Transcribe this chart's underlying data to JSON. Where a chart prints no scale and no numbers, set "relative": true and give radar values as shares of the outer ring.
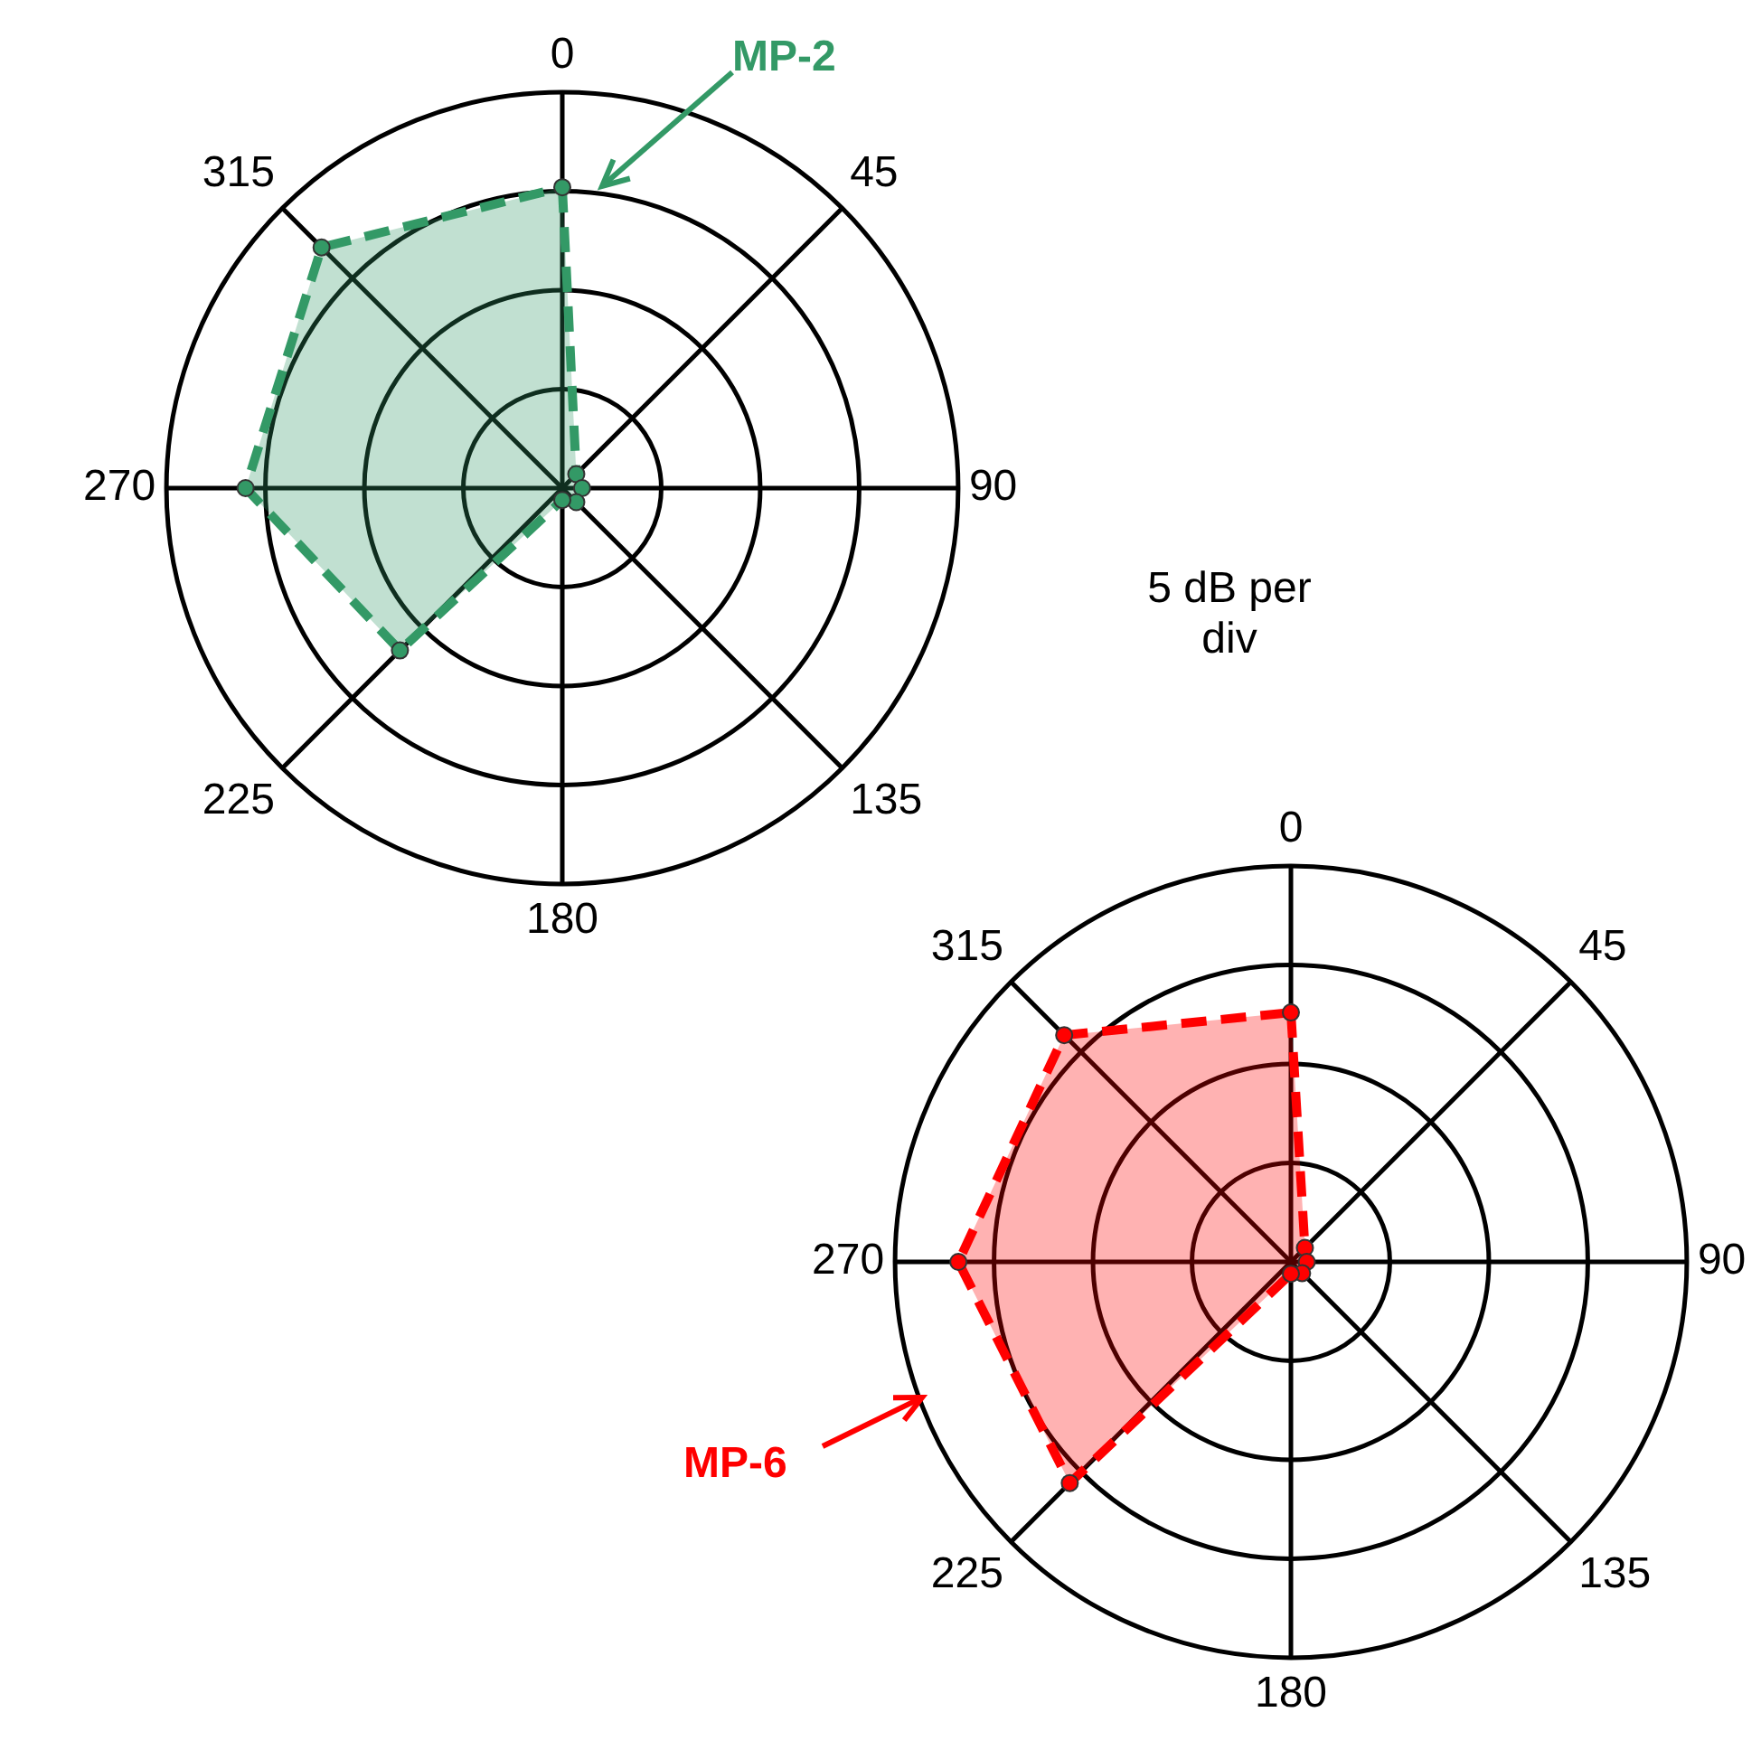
{
  "chart_data": [
    {
      "type": "radar",
      "relative": true,
      "categories": [
        "0",
        "45",
        "90",
        "135",
        "180",
        "225",
        "270",
        "315"
      ],
      "series": [
        {
          "name": "MP-2",
          "color": "#339966",
          "values": [
            0.76,
            0.05,
            0.05,
            0.05,
            0.03,
            0.58,
            0.8,
            0.86
          ]
        }
      ],
      "line_style": "dashed",
      "marker": "circle",
      "grid": true,
      "legend": false,
      "annotations": [
        "5 dB per div"
      ]
    },
    {
      "type": "radar",
      "relative": true,
      "categories": [
        "0",
        "45",
        "90",
        "135",
        "180",
        "225",
        "270",
        "315"
      ],
      "series": [
        {
          "name": "MP-6",
          "color": "#ff0000",
          "values": [
            0.63,
            0.05,
            0.04,
            0.04,
            0.03,
            0.79,
            0.84,
            0.81
          ]
        }
      ],
      "line_style": "dashed",
      "marker": "circle",
      "grid": true,
      "legend": false
    }
  ]
}
